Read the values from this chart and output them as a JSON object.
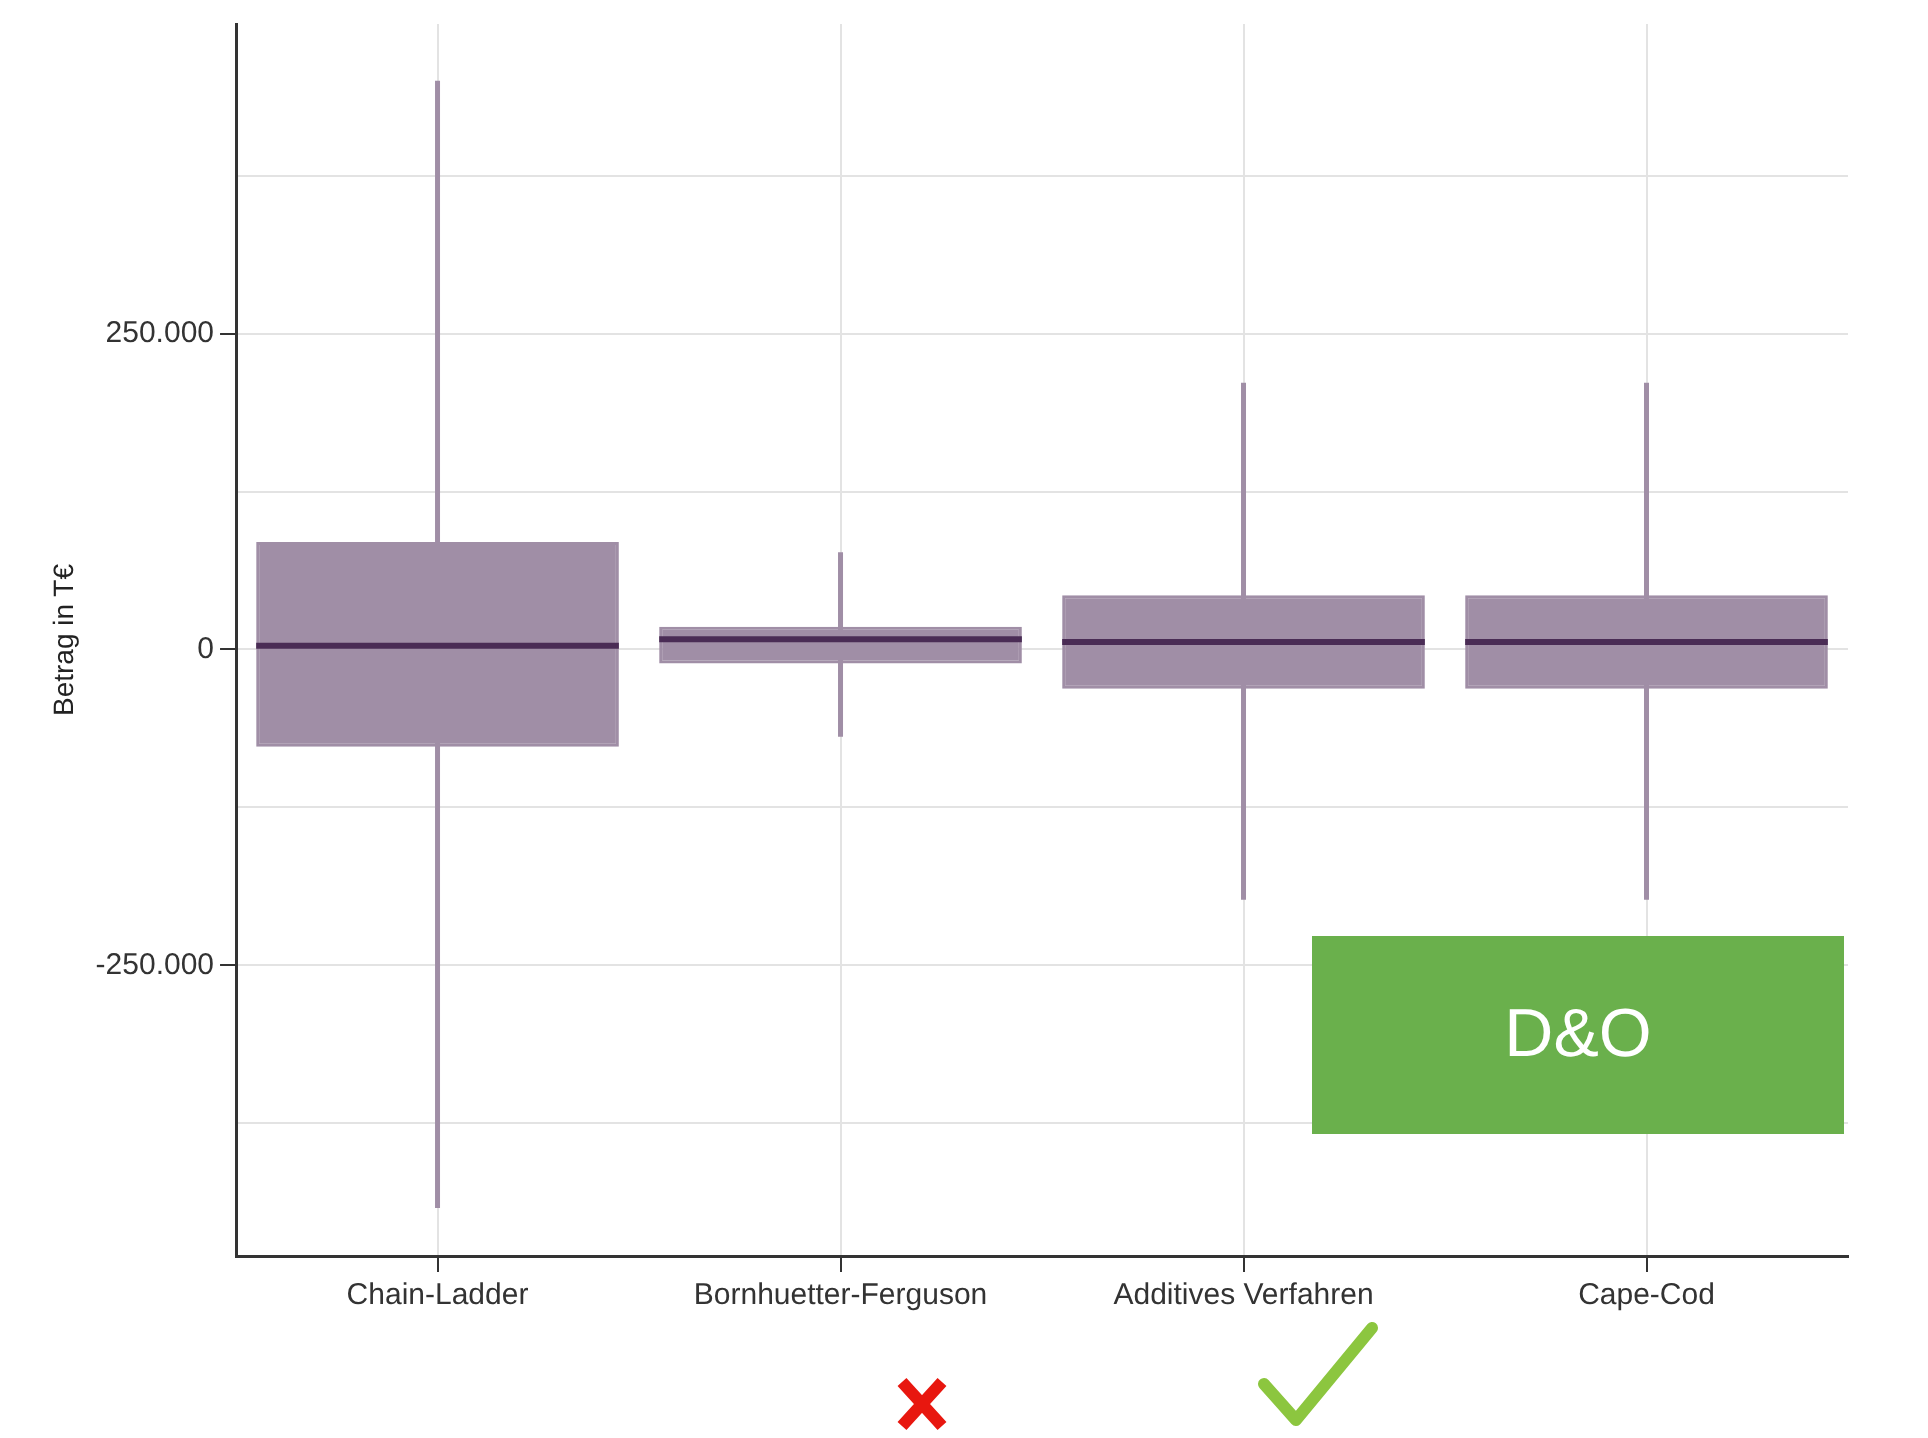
{
  "chart_data": {
    "type": "box",
    "ylabel": "Betrag in T€",
    "categories": [
      "Chain-Ladder",
      "Bornhuetter-Ferguson",
      "Additives Verfahren",
      "Cape-Cod"
    ],
    "boxes": [
      {
        "low": -442000,
        "q1": -77000,
        "median": 3000,
        "q3": 85000,
        "high": 450000
      },
      {
        "low": -69000,
        "q1": -11000,
        "median": 8000,
        "q3": 18000,
        "high": 77000
      },
      {
        "low": -198000,
        "q1": -31000,
        "median": 6000,
        "q3": 43000,
        "high": 211000
      },
      {
        "low": -198000,
        "q1": -31000,
        "median": 6000,
        "q3": 43000,
        "high": 211000
      }
    ],
    "color": "#a08ea6",
    "ylim": [
      -480000,
      495000
    ],
    "yticks": [
      {
        "value": -375000,
        "label": null
      },
      {
        "value": -250000,
        "label": "-250.000"
      },
      {
        "value": -125000,
        "label": null
      },
      0,
      {
        "value": 125000,
        "label": null
      },
      {
        "value": 250000,
        "label": "250.000"
      },
      {
        "value": 375000,
        "label": null
      }
    ],
    "grid": true,
    "legend": false,
    "annotations": [
      "D&O"
    ]
  }
}
